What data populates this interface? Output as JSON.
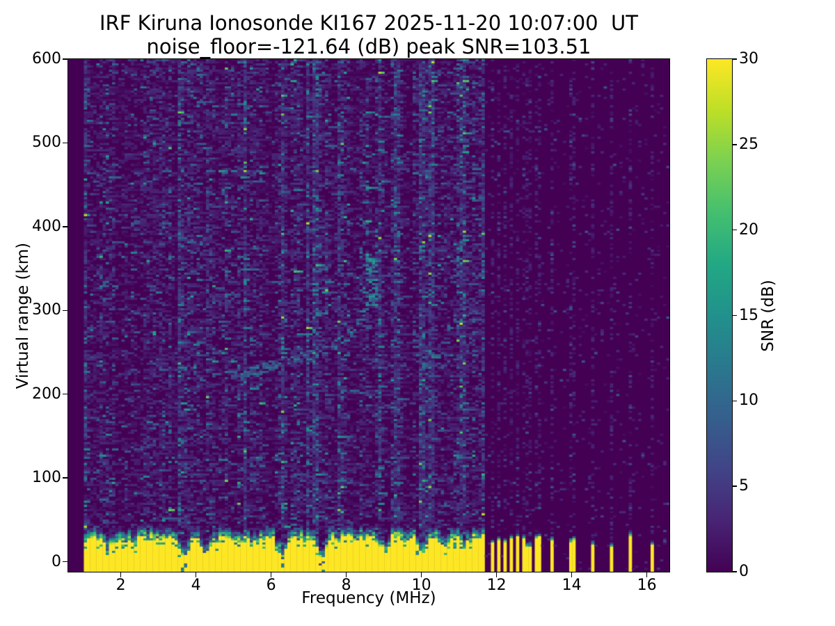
{
  "figure": {
    "background": "#ffffff"
  },
  "chart_data": {
    "type": "heatmap",
    "title": "IRF Kiruna Ionosonde KI167 2025-11-20 10:07:00  UT",
    "subtitle": "noise_floor=-121.64 (dB) peak SNR=103.51",
    "station": "KI167",
    "timestamp_ut": "2025-11-20 10:07:00",
    "noise_floor_db": -121.64,
    "peak_snr_db": 103.51,
    "xlabel": "Frequency (MHz)",
    "ylabel": "Virtual range (km)",
    "xlim": [
      0.6,
      16.6
    ],
    "ylim": [
      -12,
      600
    ],
    "xticks": [
      2,
      4,
      6,
      8,
      10,
      12,
      14,
      16
    ],
    "yticks": [
      0,
      100,
      200,
      300,
      400,
      500,
      600
    ],
    "grid": false,
    "legend": "none",
    "colormap": {
      "name": "viridis",
      "stops": [
        "#440154",
        "#482475",
        "#414487",
        "#355f8d",
        "#2a788e",
        "#21918c",
        "#22a884",
        "#44bf70",
        "#7ad151",
        "#bddf26",
        "#fde725"
      ]
    },
    "colorbar": {
      "label": "SNR (dB)",
      "ticks": [
        0,
        5,
        10,
        15,
        20,
        25,
        30
      ],
      "vmin": 0,
      "vmax": 30,
      "position": "right"
    },
    "features": {
      "data_start_mhz": 1.0,
      "seed": 20251120,
      "grid_cols": 192,
      "grid_rows": 245,
      "ground_band": {
        "end_mhz": 11.7,
        "top_km_base": 23,
        "top_km_jitter": 9,
        "fuzz_km": 14,
        "notches": [
          [
            1.65,
            0.45
          ],
          [
            2.3,
            0.75
          ],
          [
            3.68,
            0.25
          ],
          [
            4.25,
            0.4
          ],
          [
            5.5,
            0.8
          ],
          [
            6.3,
            0.15
          ],
          [
            7.35,
            0.15
          ],
          [
            9.05,
            0.4
          ],
          [
            10.0,
            0.4
          ],
          [
            10.6,
            0.75
          ],
          [
            11.15,
            0.6
          ]
        ]
      },
      "rf_bars_mhz": [
        11.86,
        12.04,
        12.22,
        12.4,
        12.58,
        12.76,
        12.92,
        13.1,
        13.5,
        14.02,
        14.55,
        15.05,
        15.55,
        16.13
      ],
      "weak_interference_mhz": [
        1.05,
        6.3,
        7.2,
        8.84,
        9.4,
        10.0,
        11.1,
        11.65
      ],
      "echo_traces": [
        {
          "points": [
            [
              4.95,
              222
            ],
            [
              5.4,
              227
            ],
            [
              5.8,
              232
            ],
            [
              6.3,
              237
            ],
            [
              6.8,
              243
            ],
            [
              7.3,
              250
            ],
            [
              7.7,
              259
            ],
            [
              8.1,
              272
            ],
            [
              8.4,
              290
            ],
            [
              8.62,
              315
            ],
            [
              8.75,
              340
            ],
            [
              8.82,
              362
            ]
          ],
          "width_km": 6,
          "prob": 0.4,
          "snr": [
            4,
            13
          ]
        },
        {
          "points": [
            [
              9.42,
              298
            ],
            [
              9.52,
              325
            ],
            [
              9.6,
              352
            ],
            [
              9.65,
              372
            ]
          ],
          "width_km": 6,
          "prob": 0.35,
          "snr": [
            4,
            11
          ]
        }
      ],
      "echo_blob": {
        "f": [
          8.5,
          8.82
        ],
        "km": [
          305,
          362
        ],
        "prob": 0.5,
        "snr": [
          7,
          17
        ]
      }
    }
  }
}
